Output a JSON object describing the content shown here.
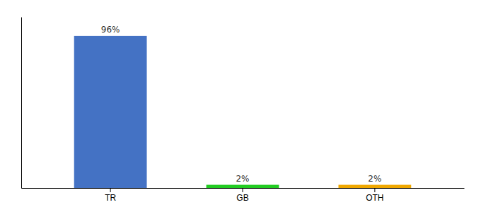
{
  "chart_data": {
    "type": "bar",
    "categories": [
      "TR",
      "GB",
      "OTH"
    ],
    "values": [
      96,
      2,
      2
    ],
    "value_labels": [
      "96%",
      "2%",
      "2%"
    ],
    "colors": [
      "#4472c4",
      "#22cc22",
      "#f0a800"
    ],
    "ylim": [
      0,
      108
    ],
    "data_labels": true,
    "tick_labels": "x",
    "grid": false
  }
}
